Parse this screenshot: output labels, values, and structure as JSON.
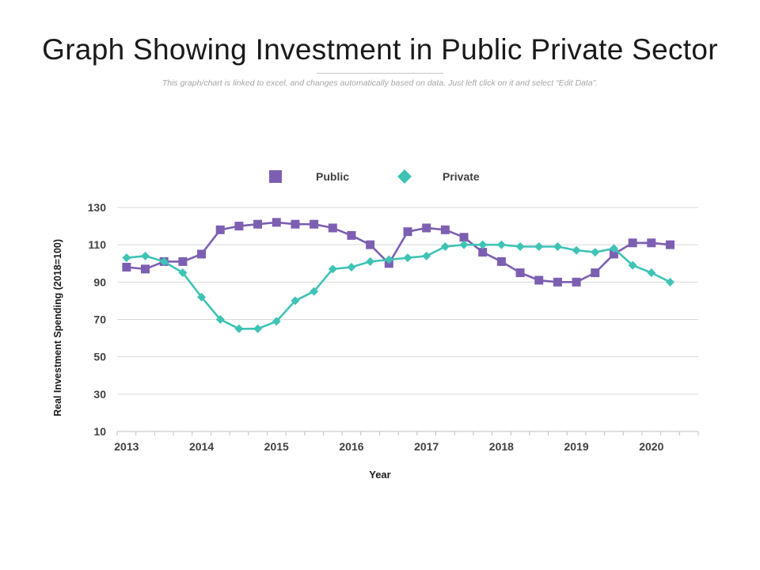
{
  "page": {
    "title": "Graph Showing Investment in Public Private Sector",
    "subtitle": "This graph/chart is linked to excel, and changes automatically based on data. Just left click on it and select “Edit Data”."
  },
  "colors": {
    "public": "#7d5fb2",
    "private": "#3ec3b5",
    "grid": "#d9d9d9",
    "axis": "#bfbfbf",
    "text": "#404040"
  },
  "chart_data": {
    "type": "line",
    "title": "Graph Showing Investment in Public Private Sector",
    "xlabel": "Year",
    "ylabel": "Real Investment Spending (2018=100)",
    "ylim": [
      10,
      130
    ],
    "yticks": [
      10,
      30,
      50,
      70,
      90,
      110,
      130
    ],
    "year_labels": [
      "2013",
      "2014",
      "2015",
      "2016",
      "2017",
      "2018",
      "2019",
      "2020"
    ],
    "points_per_year": 4,
    "grid": true,
    "legend_position": "top",
    "series": [
      {
        "name": "Public",
        "marker": "square",
        "color": "#7d5fb2",
        "values": [
          98,
          97,
          101,
          101,
          105,
          118,
          120,
          121,
          122,
          121,
          121,
          119,
          115,
          110,
          100,
          117,
          119,
          118,
          114,
          106,
          101,
          95,
          91,
          90,
          90,
          95,
          105,
          111,
          111,
          110
        ]
      },
      {
        "name": "Private",
        "marker": "diamond",
        "color": "#3ec3b5",
        "values": [
          103,
          104,
          101,
          95,
          82,
          70,
          65,
          65,
          69,
          80,
          85,
          97,
          98,
          101,
          102,
          103,
          104,
          109,
          110,
          110,
          110,
          109,
          109,
          109,
          107,
          106,
          108,
          99,
          95,
          90
        ]
      }
    ]
  }
}
